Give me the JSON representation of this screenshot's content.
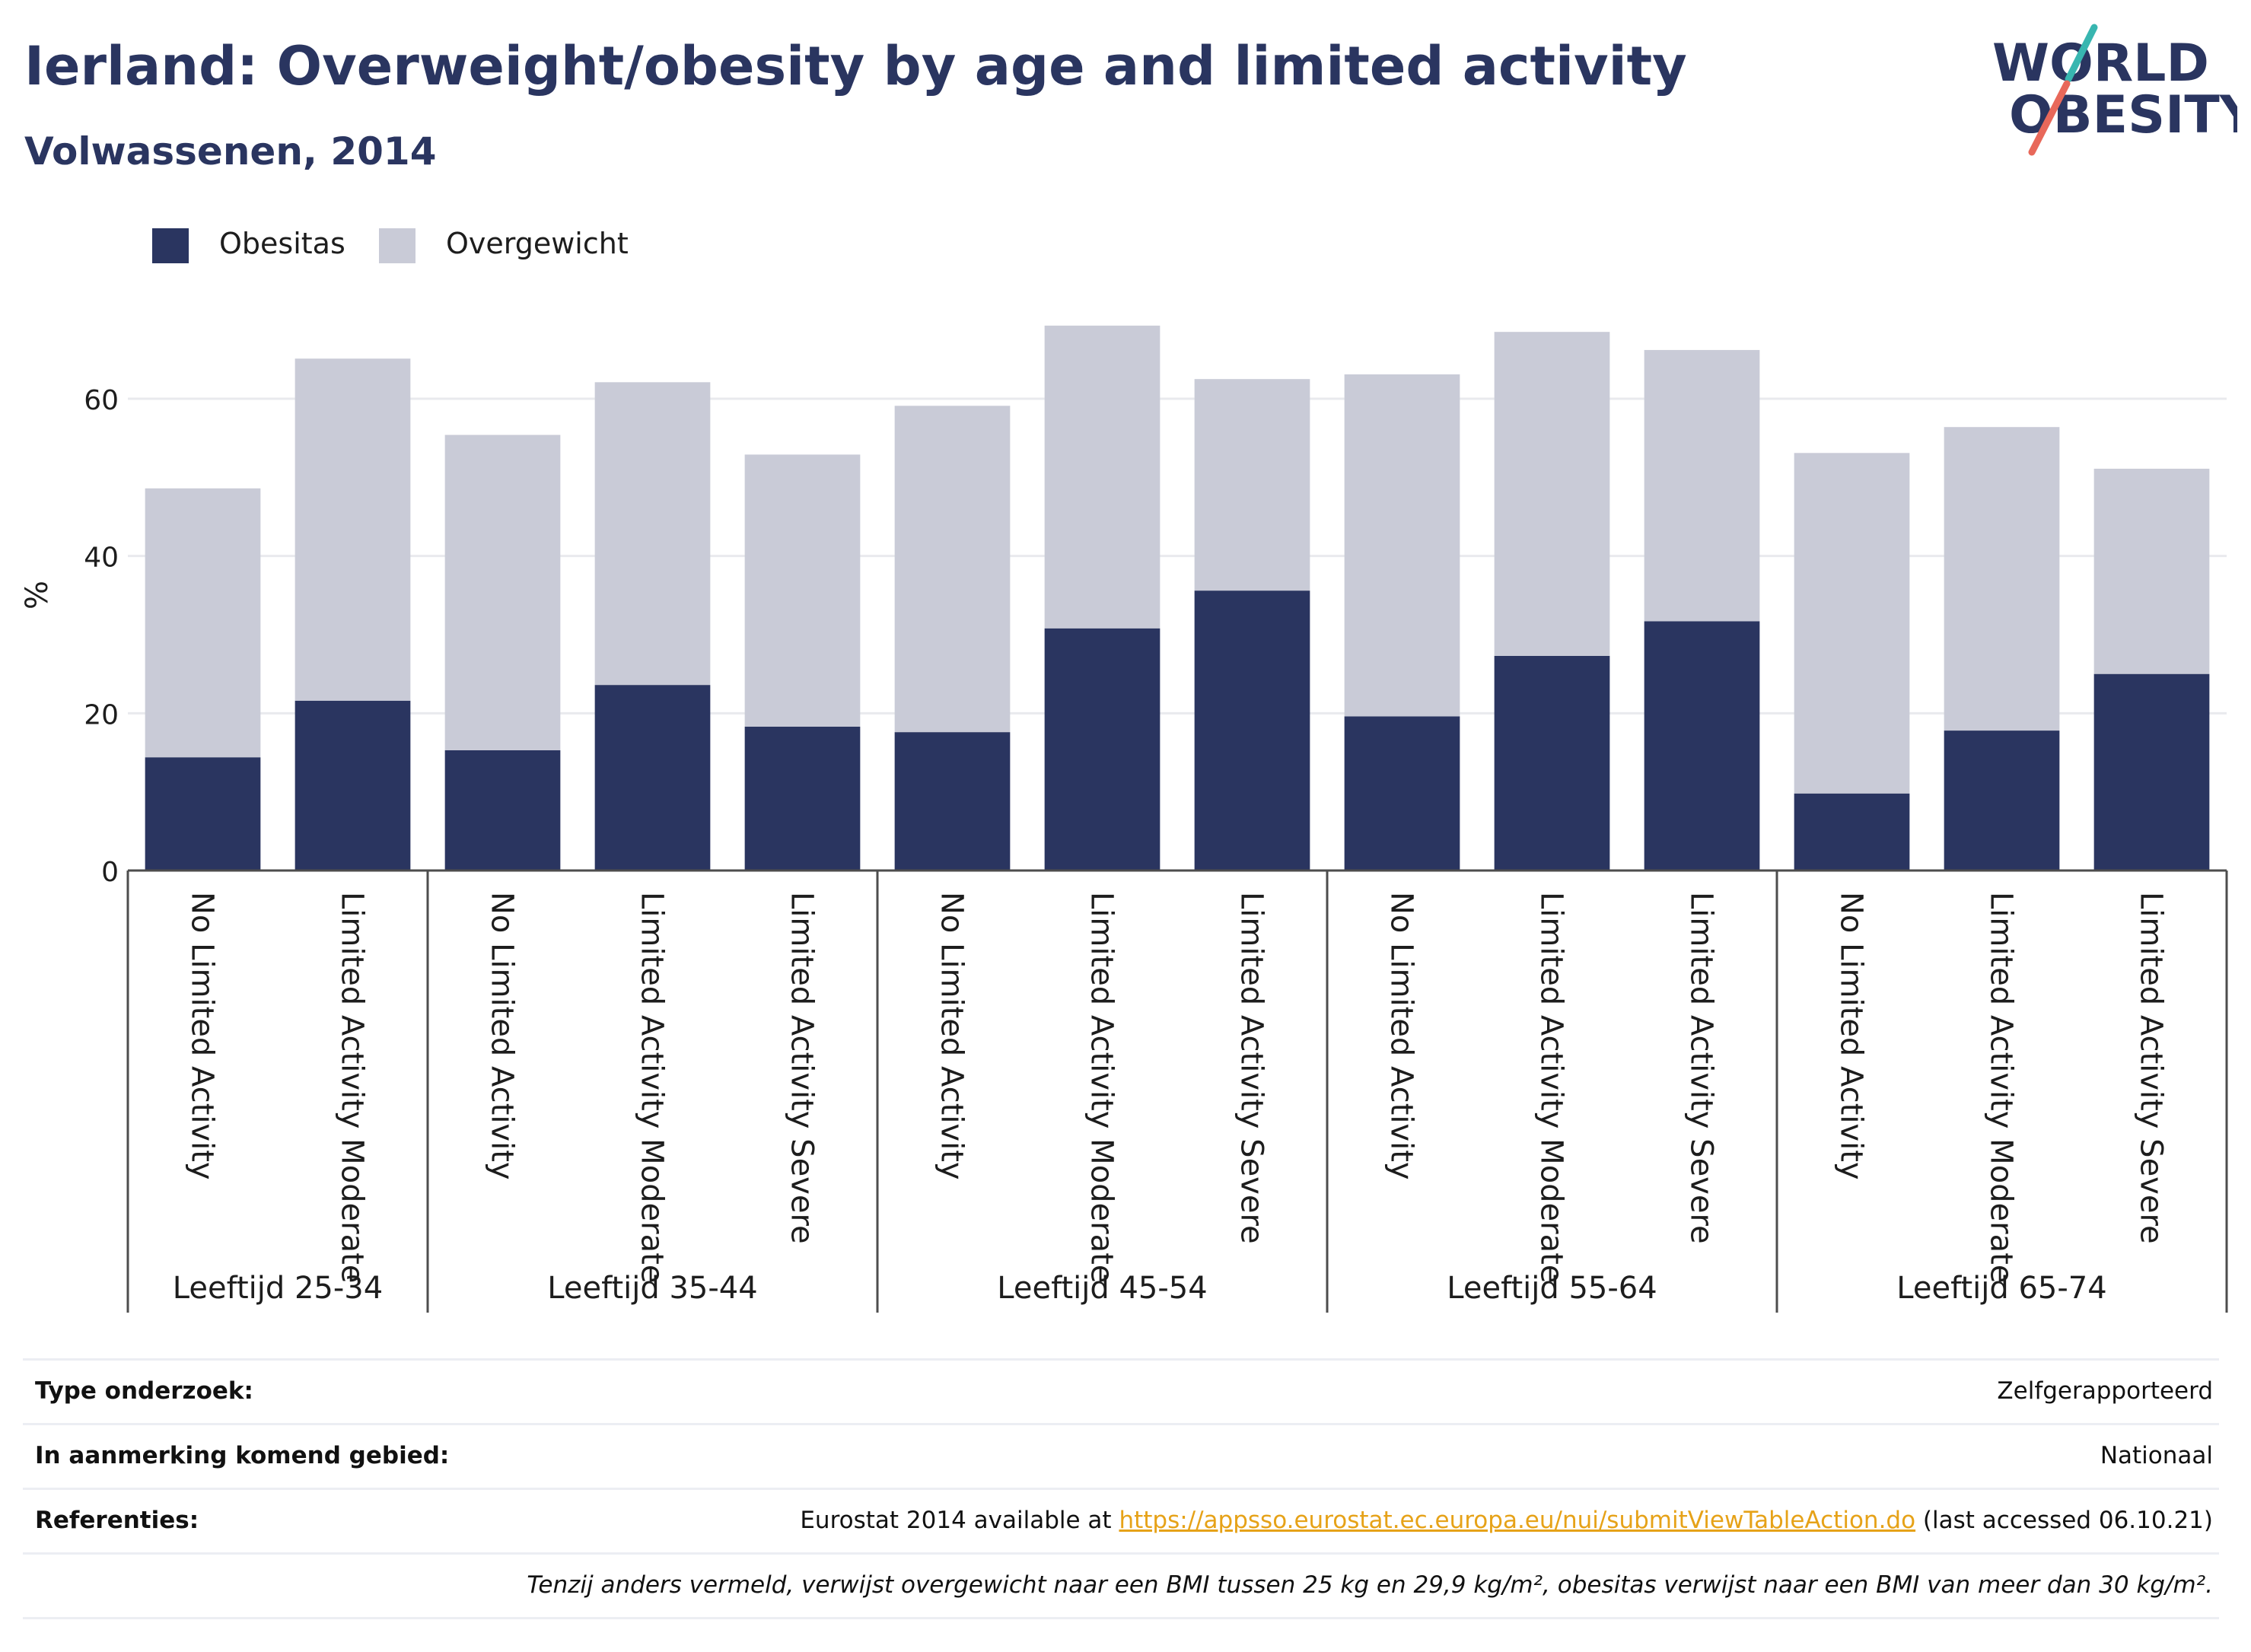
{
  "title": "Ierland: Overweight/obesity by age and limited activity",
  "subtitle": "Volwassenen, 2014",
  "logo": {
    "line1": "WORLD",
    "line2": "OBESITY",
    "color": "#2a3560",
    "accent_teal": "#38b6b0",
    "accent_red": "#e8685a"
  },
  "chart_data": {
    "type": "bar",
    "stacked": true,
    "ylabel": "%",
    "ylim": [
      0,
      72
    ],
    "yticks": [
      0,
      20,
      40,
      60
    ],
    "grid": true,
    "legend_position": "top-left",
    "groups": [
      {
        "label": "Leeftijd 25-34",
        "categories": [
          "No Limited Activity",
          "Limited Activity Moderate"
        ]
      },
      {
        "label": "Leeftijd 35-44",
        "categories": [
          "No Limited Activity",
          "Limited Activity Moderate",
          "Limited Activity Severe"
        ]
      },
      {
        "label": "Leeftijd 45-54",
        "categories": [
          "No Limited Activity",
          "Limited Activity Moderate",
          "Limited Activity Severe"
        ]
      },
      {
        "label": "Leeftijd 55-64",
        "categories": [
          "No Limited Activity",
          "Limited Activity Moderate",
          "Limited Activity Severe"
        ]
      },
      {
        "label": "Leeftijd 65-74",
        "categories": [
          "No Limited Activity",
          "Limited Activity Moderate",
          "Limited Activity Severe"
        ]
      }
    ],
    "series": [
      {
        "name": "Obesitas",
        "color": "#2a3560",
        "values": [
          14.4,
          21.6,
          15.3,
          23.6,
          18.3,
          17.6,
          30.8,
          35.6,
          19.6,
          27.3,
          31.7,
          9.8,
          17.8,
          25.0
        ]
      },
      {
        "name": "Overgewicht",
        "color": "#c9cbd7",
        "values": [
          34.2,
          43.5,
          40.1,
          38.5,
          34.6,
          41.5,
          38.5,
          26.9,
          43.5,
          41.2,
          34.5,
          43.3,
          38.6,
          26.1
        ]
      }
    ]
  },
  "info": {
    "survey_type": {
      "label": "Type onderzoek:",
      "value": "Zelfgerapporteerd"
    },
    "area": {
      "label": "In aanmerking komend gebied:",
      "value": "Nationaal"
    },
    "references": {
      "label": "Referenties:",
      "prefix": "Eurostat 2014 available at ",
      "link": "https://appsso.eurostat.ec.europa.eu/nui/submitViewTableAction.do",
      "suffix": " (last accessed 06.10.21)"
    },
    "note": "Tenzij anders vermeld, verwijst overgewicht naar een BMI tussen 25 kg en 29,9 kg/m², obesitas verwijst naar een BMI van meer dan 30 kg/m²."
  }
}
